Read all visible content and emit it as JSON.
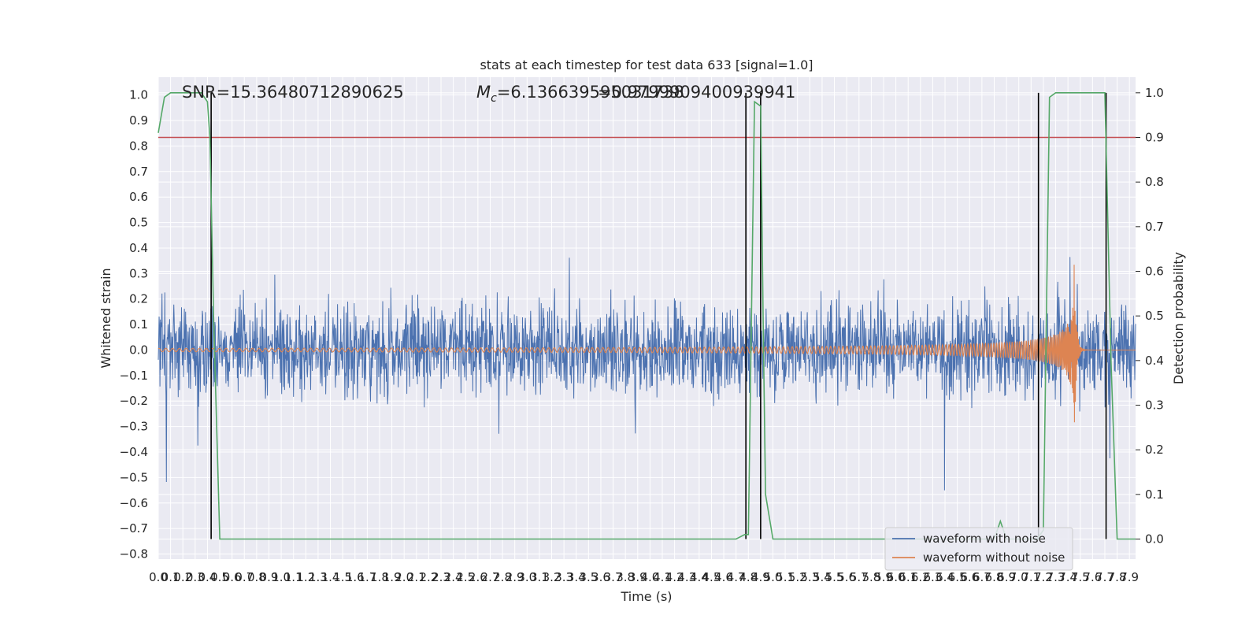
{
  "chart_data": {
    "type": "line",
    "title": "stats at each timestep for test data 633 [signal=1.0]",
    "xlabel": "Time (s)",
    "ylabel": "Whitened strain",
    "ylabel_right": "Detection probability",
    "xlim": [
      0.0,
      7.95
    ],
    "ylim": [
      -0.82,
      1.07
    ],
    "ylim_right": [
      -0.045,
      1.035
    ],
    "grid": true,
    "x_ticks": [
      "0.0",
      "0.1",
      "0.2",
      "0.3",
      "0.4",
      "0.5",
      "0.6",
      "0.7",
      "0.8",
      "0.9",
      "1.0",
      "1.1",
      "1.2",
      "1.3",
      "1.4",
      "1.5",
      "1.6",
      "1.7",
      "1.8",
      "1.9",
      "2.0",
      "2.1",
      "2.2",
      "2.3",
      "2.4",
      "2.5",
      "2.6",
      "2.7",
      "2.8",
      "2.9",
      "3.0",
      "3.1",
      "3.2",
      "3.3",
      "3.4",
      "3.5",
      "3.6",
      "3.7",
      "3.8",
      "3.9",
      "4.0",
      "4.1",
      "4.2",
      "4.3",
      "4.4",
      "4.5",
      "4.6",
      "4.7",
      "4.8",
      "4.9",
      "5.0",
      "5.1",
      "5.2",
      "5.3",
      "5.4",
      "5.5",
      "5.6",
      "5.7",
      "5.8",
      "5.9",
      "6.0",
      "6.1",
      "6.2",
      "6.3",
      "6.4",
      "6.5",
      "6.6",
      "6.7",
      "6.8",
      "6.9",
      "7.0",
      "7.1",
      "7.2",
      "7.3",
      "7.4",
      "7.5",
      "7.6",
      "7.7",
      "7.8",
      "7.9"
    ],
    "y_ticks": [
      "1.0",
      "0.9",
      "0.8",
      "0.7",
      "0.6",
      "0.5",
      "0.4",
      "0.3",
      "0.2",
      "0.1",
      "0.0",
      "−0.1",
      "−0.2",
      "−0.3",
      "−0.4",
      "−0.5",
      "−0.6",
      "−0.7",
      "−0.8"
    ],
    "y_ticks_right": [
      "1.0",
      "0.9",
      "0.8",
      "0.7",
      "0.6",
      "0.5",
      "0.4",
      "0.3",
      "0.2",
      "0.1",
      "0.0"
    ],
    "annotations": {
      "snr": "SNR=15.36480712890625",
      "mc_prefix": "M",
      "mc_sub": "c",
      "mc_value": "=6.136639595031738",
      "overlap_value": "=0.9799909400939941"
    },
    "series": [
      {
        "name": "waveform with noise",
        "color": "#4c72b0",
        "kind": "noise",
        "approx_amplitude": 0.45
      },
      {
        "name": "waveform without noise",
        "color": "#dd8452",
        "kind": "chirp",
        "peak_time": 7.45,
        "peak_amplitude": 0.38
      },
      {
        "name": "detection probability",
        "color": "#55a868",
        "axis": "right",
        "x": [
          0.0,
          0.05,
          0.1,
          0.15,
          0.3,
          0.35,
          0.4,
          0.42,
          0.45,
          0.5,
          4.7,
          4.77,
          4.8,
          4.85,
          4.9,
          4.92,
          4.94,
          5.0,
          6.8,
          6.85,
          6.9,
          7.1,
          7.15,
          7.2,
          7.25,
          7.3,
          7.35,
          7.65,
          7.7,
          7.75,
          7.8,
          7.95
        ],
        "y": [
          0.91,
          0.99,
          1.0,
          1.0,
          1.0,
          1.0,
          0.98,
          0.9,
          0.5,
          0.0,
          0.0,
          0.01,
          0.01,
          0.98,
          0.97,
          0.5,
          0.1,
          0.0,
          0.0,
          0.04,
          0.0,
          0.0,
          0.0,
          0.02,
          0.99,
          1.0,
          1.0,
          1.0,
          1.0,
          0.4,
          0.0,
          0.0
        ]
      }
    ],
    "threshold": {
      "value": 0.9,
      "axis": "right",
      "color": "#c44e52"
    },
    "vertical_markers": [
      0.43,
      4.78,
      4.9,
      7.16,
      7.71
    ],
    "legend": {
      "position": "bottom-right",
      "entries": [
        "waveform with noise",
        "waveform without noise"
      ]
    }
  }
}
